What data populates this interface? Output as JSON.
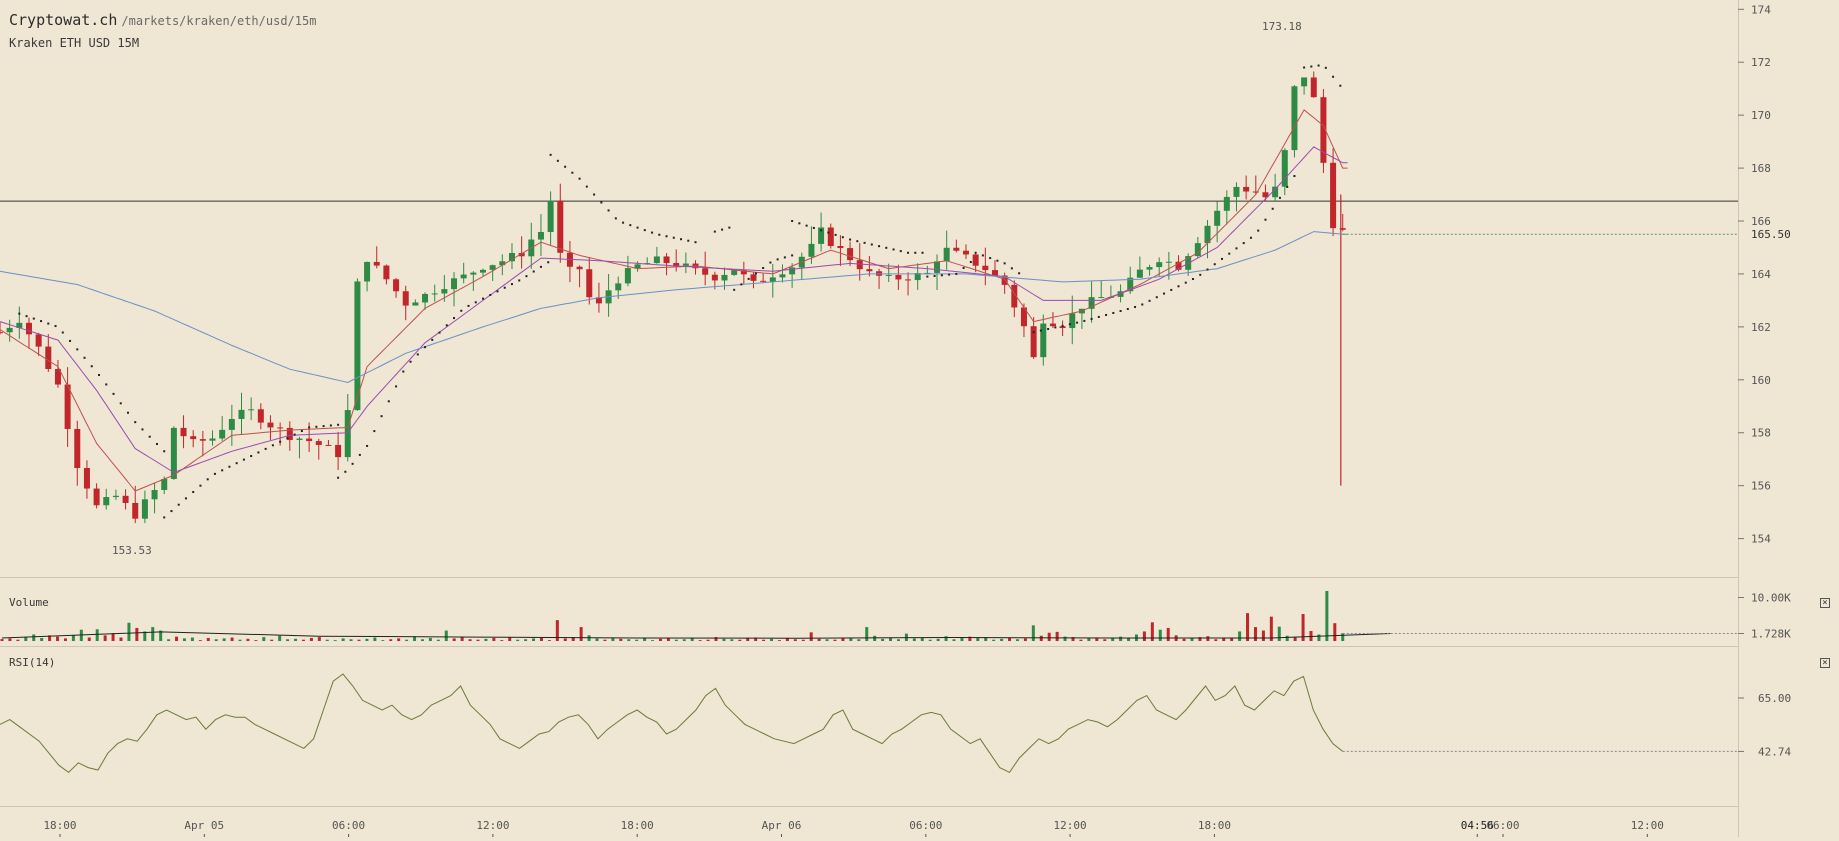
{
  "header": {
    "site": "Cryptowat.ch",
    "path": "/markets/kraken/eth/usd/15m",
    "pair_label": "Kraken ETH USD 15M"
  },
  "chart_data": [
    {
      "type": "candlestick",
      "pair": "Kraken ETH USD 15M",
      "x_tick_labels": [
        "18:00",
        "Apr 05",
        "06:00",
        "12:00",
        "18:00",
        "Apr 06",
        "06:00",
        "12:00",
        "18:00",
        "04:56",
        "06:00",
        "12:00"
      ],
      "y_tick_labels": [
        "174",
        "172",
        "170",
        "168",
        "166",
        "164",
        "162",
        "160",
        "158",
        "156",
        "154"
      ],
      "ylim": [
        152.7,
        174.2
      ],
      "annotations": {
        "high": "173.18",
        "low": "153.53",
        "last": "165.50",
        "horizontal_line": 166.75
      },
      "close_path": [
        [
          0,
          161.8
        ],
        [
          2,
          162.3
        ],
        [
          4,
          161.2
        ],
        [
          6,
          159.8
        ],
        [
          8,
          156.8
        ],
        [
          10,
          155.2
        ],
        [
          12,
          155.6
        ],
        [
          14,
          154.9
        ],
        [
          16,
          155.8
        ],
        [
          17,
          156.2
        ],
        [
          18,
          158.2
        ],
        [
          20,
          157.6
        ],
        [
          22,
          157.8
        ],
        [
          24,
          158.6
        ],
        [
          26,
          158.8
        ],
        [
          28,
          158.3
        ],
        [
          30,
          157.9
        ],
        [
          32,
          157.7
        ],
        [
          34,
          157.4
        ],
        [
          35,
          157.2
        ],
        [
          36,
          158.8
        ],
        [
          37,
          163.6
        ],
        [
          38,
          164.6
        ],
        [
          40,
          163.8
        ],
        [
          42,
          162.9
        ],
        [
          44,
          163.2
        ],
        [
          46,
          163.6
        ],
        [
          48,
          163.9
        ],
        [
          50,
          164.3
        ],
        [
          52,
          164.5
        ],
        [
          54,
          164.8
        ],
        [
          55,
          165.3
        ],
        [
          56,
          165.6
        ],
        [
          57,
          166.8
        ],
        [
          58,
          164.7
        ],
        [
          59,
          164.1
        ],
        [
          60,
          164.2
        ],
        [
          61,
          163.1
        ],
        [
          62,
          162.8
        ],
        [
          63,
          163.4
        ],
        [
          64,
          163.8
        ],
        [
          66,
          164.3
        ],
        [
          68,
          164.5
        ],
        [
          70,
          164.4
        ],
        [
          72,
          164.1
        ],
        [
          74,
          163.9
        ],
        [
          76,
          164.2
        ],
        [
          78,
          163.6
        ],
        [
          80,
          164.0
        ],
        [
          82,
          164.3
        ],
        [
          84,
          165.0
        ],
        [
          85,
          165.6
        ],
        [
          86,
          165.2
        ],
        [
          88,
          164.6
        ],
        [
          90,
          164.0
        ],
        [
          92,
          163.8
        ],
        [
          94,
          163.9
        ],
        [
          96,
          164.0
        ],
        [
          97,
          164.6
        ],
        [
          98,
          164.9
        ],
        [
          100,
          164.6
        ],
        [
          102,
          164.2
        ],
        [
          104,
          163.6
        ],
        [
          106,
          162.0
        ],
        [
          107,
          160.8
        ],
        [
          108,
          162.3
        ],
        [
          110,
          162.1
        ],
        [
          112,
          162.8
        ],
        [
          114,
          163.1
        ],
        [
          116,
          163.3
        ],
        [
          118,
          164.1
        ],
        [
          120,
          164.6
        ],
        [
          122,
          164.3
        ],
        [
          124,
          165.3
        ],
        [
          126,
          166.4
        ],
        [
          128,
          167.3
        ],
        [
          130,
          167.1
        ],
        [
          131,
          166.9
        ],
        [
          132,
          167.2
        ],
        [
          133,
          168.6
        ],
        [
          134,
          171.0
        ],
        [
          135,
          171.5
        ],
        [
          136,
          170.6
        ],
        [
          137,
          168.2
        ],
        [
          138,
          165.9
        ],
        [
          139,
          165.6
        ]
      ],
      "moving_averages": [
        {
          "color": "#c05050",
          "points": [
            [
              0,
              161.9
            ],
            [
              6,
              160.5
            ],
            [
              10,
              157.6
            ],
            [
              14,
              155.8
            ],
            [
              18,
              156.4
            ],
            [
              24,
              157.9
            ],
            [
              30,
              158.1
            ],
            [
              36,
              158.2
            ],
            [
              38,
              160.5
            ],
            [
              44,
              162.7
            ],
            [
              50,
              163.9
            ],
            [
              56,
              165.2
            ],
            [
              60,
              164.7
            ],
            [
              66,
              164.2
            ],
            [
              72,
              164.3
            ],
            [
              80,
              164.0
            ],
            [
              86,
              164.9
            ],
            [
              92,
              164.2
            ],
            [
              98,
              164.5
            ],
            [
              104,
              163.8
            ],
            [
              107,
              162.2
            ],
            [
              112,
              162.6
            ],
            [
              118,
              163.6
            ],
            [
              124,
              164.8
            ],
            [
              130,
              167.0
            ],
            [
              135,
              170.2
            ],
            [
              137,
              169.6
            ],
            [
              139,
              168.0
            ]
          ]
        },
        {
          "color": "#9b4bb0",
          "points": [
            [
              0,
              162.2
            ],
            [
              6,
              161.5
            ],
            [
              10,
              159.6
            ],
            [
              14,
              157.4
            ],
            [
              18,
              156.5
            ],
            [
              24,
              157.3
            ],
            [
              30,
              157.9
            ],
            [
              36,
              158.0
            ],
            [
              38,
              159.0
            ],
            [
              44,
              161.4
            ],
            [
              50,
              163.0
            ],
            [
              56,
              164.6
            ],
            [
              62,
              164.5
            ],
            [
              70,
              164.3
            ],
            [
              80,
              164.1
            ],
            [
              88,
              164.4
            ],
            [
              96,
              164.2
            ],
            [
              104,
              163.9
            ],
            [
              108,
              163.0
            ],
            [
              114,
              163.0
            ],
            [
              120,
              163.8
            ],
            [
              126,
              165.0
            ],
            [
              132,
              167.2
            ],
            [
              136,
              168.8
            ],
            [
              139,
              168.2
            ]
          ]
        },
        {
          "color": "#6b8fc7",
          "points": [
            [
              0,
              164.1
            ],
            [
              8,
              163.6
            ],
            [
              16,
              162.6
            ],
            [
              24,
              161.3
            ],
            [
              30,
              160.4
            ],
            [
              36,
              159.9
            ],
            [
              42,
              161.0
            ],
            [
              50,
              162.0
            ],
            [
              56,
              162.7
            ],
            [
              62,
              163.1
            ],
            [
              70,
              163.4
            ],
            [
              80,
              163.7
            ],
            [
              90,
              164.0
            ],
            [
              100,
              164.0
            ],
            [
              110,
              163.7
            ],
            [
              118,
              163.8
            ],
            [
              126,
              164.2
            ],
            [
              132,
              164.9
            ],
            [
              136,
              165.6
            ],
            [
              139,
              165.5
            ]
          ]
        }
      ],
      "sar_segments": [
        [
          [
            2,
            162.5
          ],
          [
            6,
            162.0
          ],
          [
            10,
            160.3
          ],
          [
            14,
            158.4
          ],
          [
            17,
            157.3
          ]
        ],
        [
          [
            17,
            154.8
          ],
          [
            22,
            156.4
          ],
          [
            27,
            157.3
          ],
          [
            32,
            158.2
          ],
          [
            35,
            158.3
          ]
        ],
        [
          [
            35,
            156.3
          ],
          [
            36,
            156.6
          ],
          [
            38,
            157.5
          ],
          [
            42,
            160.5
          ],
          [
            48,
            162.7
          ],
          [
            54,
            163.8
          ],
          [
            57,
            164.5
          ]
        ],
        [
          [
            57,
            168.5
          ],
          [
            60,
            167.6
          ],
          [
            64,
            166.0
          ],
          [
            68,
            165.5
          ],
          [
            72,
            165.2
          ]
        ],
        [
          [
            74,
            165.6
          ],
          [
            76,
            165.8
          ]
        ],
        [
          [
            76,
            163.4
          ],
          [
            80,
            164.5
          ],
          [
            82,
            164.7
          ]
        ],
        [
          [
            82,
            166.0
          ],
          [
            88,
            165.3
          ],
          [
            94,
            164.8
          ],
          [
            96,
            164.8
          ]
        ],
        [
          [
            96,
            163.9
          ],
          [
            99,
            164.0
          ],
          [
            101,
            164.6
          ]
        ],
        [
          [
            101,
            164.8
          ],
          [
            104,
            164.4
          ],
          [
            106,
            163.9
          ]
        ],
        [
          [
            107,
            161.8
          ],
          [
            112,
            162.2
          ],
          [
            118,
            162.8
          ],
          [
            124,
            163.9
          ],
          [
            130,
            165.5
          ],
          [
            134,
            167.7
          ]
        ],
        [
          [
            135,
            171.8
          ],
          [
            137,
            171.9
          ],
          [
            139,
            171.0
          ]
        ]
      ],
      "wick_low": {
        "x_index": 138.8,
        "value": 156.0
      }
    },
    {
      "type": "bar",
      "title": "Volume",
      "y_tick_labels": [
        "10.00K",
        "1.728K"
      ],
      "ylim": [
        0,
        11500
      ],
      "values": [
        450,
        600,
        300,
        900,
        1500,
        700,
        1300,
        1000,
        600,
        1400,
        2600,
        800,
        2700,
        1300,
        1800,
        800,
        4200,
        3000,
        2200,
        3200,
        2400,
        400,
        1000,
        600,
        800,
        200,
        700,
        400,
        600,
        800,
        300,
        500,
        200,
        900,
        300,
        1200,
        400,
        500,
        300,
        700,
        900,
        300,
        200,
        600,
        400,
        300,
        500,
        800,
        200,
        400,
        600,
        300,
        1100,
        400,
        700,
        300,
        2400,
        600,
        900,
        400,
        300,
        500,
        700,
        200,
        800,
        300,
        400,
        600,
        700,
        200,
        4800,
        600,
        900,
        3200,
        1300,
        600,
        300,
        800,
        500,
        400,
        300,
        600,
        200,
        500,
        800,
        300,
        400,
        600,
        200,
        300,
        900,
        500,
        400,
        300,
        600,
        800,
        300,
        500,
        200,
        700,
        400,
        300,
        2000,
        500,
        400,
        300,
        600,
        800,
        400,
        3200,
        1200,
        500,
        800,
        400,
        1700,
        600,
        800,
        300,
        500,
        1100,
        400,
        700,
        1000,
        700,
        900,
        300,
        500,
        800,
        400,
        600,
        3600,
        1200,
        1900,
        2100,
        1000,
        900,
        300,
        600,
        800,
        400,
        700,
        1000,
        600,
        1500,
        2200,
        4300,
        2600,
        3000,
        1300,
        500,
        700,
        900,
        1100,
        400,
        600,
        800,
        2200,
        6400,
        3200,
        2400,
        5600,
        3300,
        1200,
        800,
        6200,
        2300,
        1500,
        11500,
        4100,
        1800
      ],
      "avg_line": [
        [
          0,
          700
        ],
        [
          20,
          2100
        ],
        [
          40,
          1100
        ],
        [
          60,
          900
        ],
        [
          80,
          700
        ],
        [
          100,
          650
        ],
        [
          120,
          800
        ],
        [
          140,
          700
        ],
        [
          160,
          700
        ],
        [
          175,
          1728
        ]
      ],
      "last_value": "1.728K"
    },
    {
      "type": "line",
      "title": "RSI(14)",
      "y_tick_labels": [
        "65.00",
        "42.74"
      ],
      "ylim": [
        20,
        85
      ],
      "x_end_index": 139,
      "values": [
        54,
        56,
        53,
        50,
        47,
        42,
        37,
        34,
        38,
        36,
        35,
        42,
        46,
        48,
        47,
        52,
        58,
        60,
        58,
        56,
        57,
        52,
        56,
        58,
        57,
        57,
        54,
        52,
        50,
        48,
        46,
        44,
        48,
        60,
        72,
        75,
        70,
        64,
        62,
        60,
        62,
        58,
        56,
        58,
        62,
        64,
        66,
        70,
        62,
        58,
        54,
        48,
        46,
        44,
        47,
        50,
        51,
        55,
        57,
        58,
        54,
        48,
        52,
        55,
        58,
        60,
        57,
        55,
        50,
        52,
        56,
        60,
        66,
        69,
        62,
        58,
        54,
        52,
        50,
        48,
        47,
        46,
        48,
        50,
        52,
        58,
        60,
        52,
        50,
        48,
        46,
        50,
        52,
        55,
        58,
        59,
        58,
        52,
        49,
        46,
        48,
        42,
        36,
        34,
        40,
        44,
        48,
        46,
        48,
        52,
        54,
        56,
        55,
        53,
        56,
        60,
        64,
        66,
        60,
        58,
        56,
        60,
        65,
        70,
        64,
        66,
        70,
        62,
        60,
        64,
        68,
        66,
        72,
        74,
        60,
        52,
        46,
        42.74
      ]
    }
  ]
}
